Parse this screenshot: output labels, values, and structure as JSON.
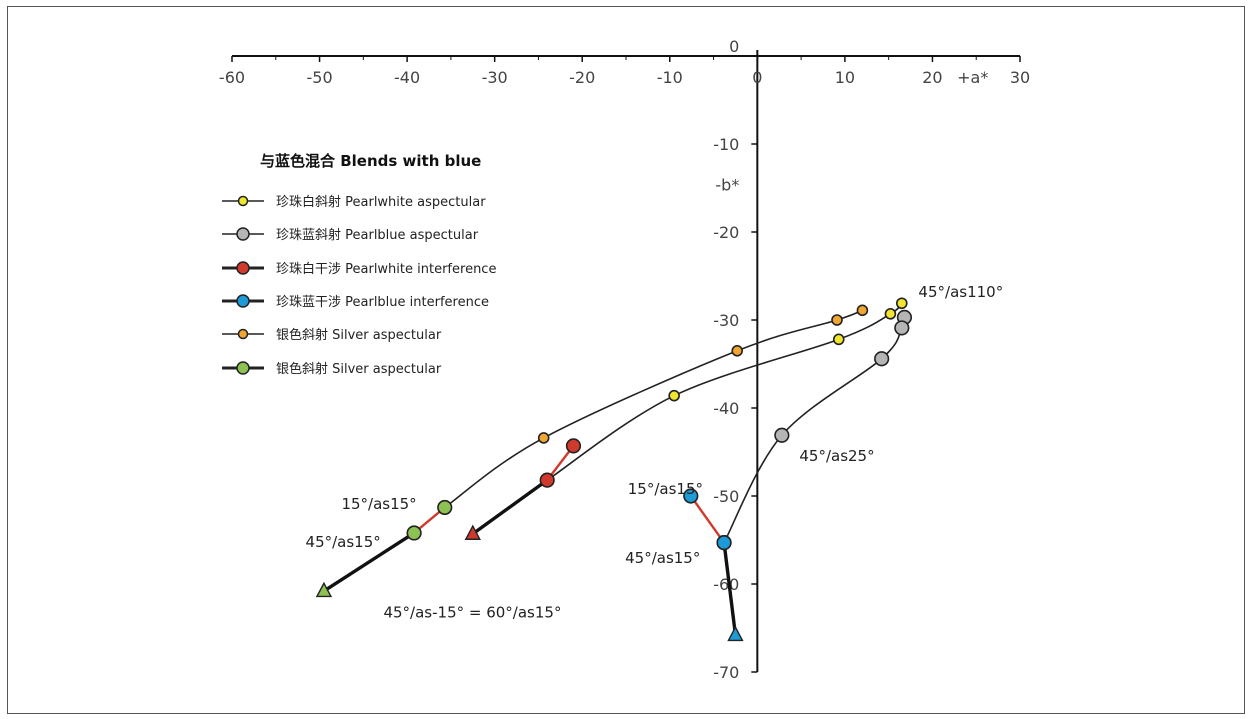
{
  "chart_data": {
    "type": "line",
    "x_ticks": [
      "-60",
      "-50",
      "-40",
      "-30",
      "-20",
      "-10",
      "0",
      "10",
      "20",
      "30"
    ],
    "y_ticks": [
      "0",
      "-10",
      "-20",
      "-30",
      "-40",
      "-50",
      "-60",
      "-70"
    ],
    "xlabel": "+a*",
    "ylabel": "-b*",
    "xlim": [
      -60,
      30
    ],
    "ylim": [
      -70,
      0
    ],
    "legend_title": "与蓝色混合 Blends with blue",
    "legend_placement": "top-left",
    "series": [
      {
        "name": "珍珠白斜射 Pearlwhite aspectular",
        "line_color": "#222222",
        "marker_color": "#f2e531",
        "marker": "circle",
        "marker_size": "small",
        "x": [
          16.5,
          15.2,
          9.3,
          -9.5,
          -24
        ],
        "y": [
          -28.1,
          -29.3,
          -32.2,
          -38.6,
          -48.2
        ]
      },
      {
        "name": "珍珠蓝斜射 Pearlblue aspectular",
        "line_color": "#222222",
        "marker_color": "#b5b5b5",
        "marker": "circle",
        "marker_size": "large",
        "x": [
          16.8,
          16.5,
          14.2,
          2.8,
          -3.8
        ],
        "y": [
          -29.7,
          -30.9,
          -34.4,
          -43.1,
          -55.3
        ]
      },
      {
        "name": "珍珠白干涉 Pearlwhite interference",
        "line_color": "#d03a2c",
        "marker_color": "#d03a2c",
        "marker": "circle",
        "marker_size": "large",
        "x": [
          -21,
          -24
        ],
        "y": [
          -44.3,
          -48.2
        ]
      },
      {
        "name": "珍珠蓝干涉 Pearlblue interference",
        "line_color": "#d03a2c",
        "marker_color": "#1e9ad6",
        "marker": "circle",
        "marker_size": "large",
        "x": [
          -7.6,
          -3.8
        ],
        "y": [
          -50,
          -55.3
        ]
      },
      {
        "name": "银色斜射 Silver aspectular",
        "line_color": "#222222",
        "marker_color": "#f0a630",
        "marker": "circle",
        "marker_size": "small",
        "x": [
          12,
          9.1,
          -2.3,
          -24.4,
          -35.7
        ],
        "y": [
          -28.9,
          -30,
          -33.5,
          -43.4,
          -51.3
        ]
      },
      {
        "name": "银色斜射 Silver aspectular",
        "line_color": "#d03a2c",
        "marker_color": "#8dc153",
        "marker": "circle",
        "marker_size": "large",
        "x": [
          -35.7,
          -39.2
        ],
        "y": [
          -51.3,
          -54.2
        ]
      }
    ],
    "thick_segments": [
      {
        "color": "#111111",
        "x": [
          -39.2,
          -49.5
        ],
        "y": [
          -54.2,
          -60.8
        ],
        "end_marker": "triangle",
        "end_color": "#8dc153"
      },
      {
        "color": "#111111",
        "x": [
          -24,
          -32.5
        ],
        "y": [
          -48.2,
          -54.3
        ],
        "end_marker": "triangle",
        "end_color": "#d03a2c"
      },
      {
        "color": "#111111",
        "x": [
          -3.8,
          -2.5
        ],
        "y": [
          -55.3,
          -65.8
        ],
        "end_marker": "triangle",
        "end_color": "#1e9ad6"
      }
    ],
    "annotations": [
      {
        "text": "45°/as110°",
        "x": 18.4,
        "y": -27.4
      },
      {
        "text": "45°/as25°",
        "x": 4.8,
        "y": -46
      },
      {
        "text": "15°/as15°",
        "x": -14.8,
        "y": -49.8
      },
      {
        "text": "45°/as15°",
        "x": -15.1,
        "y": -57.6
      },
      {
        "text": "15°/as15°",
        "x": -47.5,
        "y": -51.5
      },
      {
        "text": "45°/as15°",
        "x": -51.6,
        "y": -55.8
      },
      {
        "text": "45°/as-15° = 60°/as15°",
        "x": -42.7,
        "y": -63.8
      }
    ]
  }
}
